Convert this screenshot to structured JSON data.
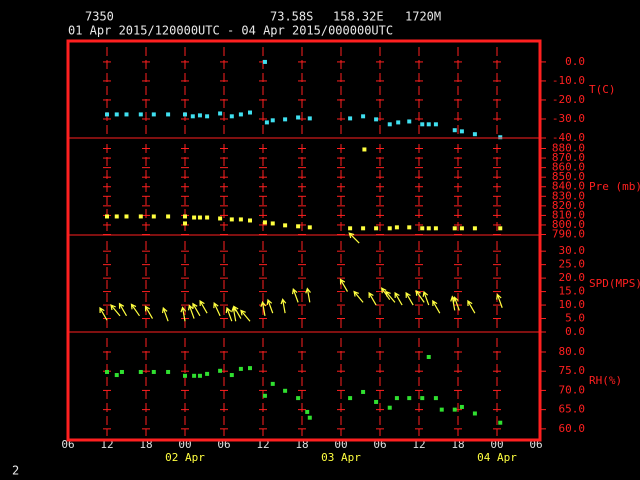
{
  "header": {
    "station": "7350",
    "latitude": "73.58S",
    "longitude": "158.32E",
    "elevation": "1720M",
    "period": "01 Apr 2015/120000UTC - 04 Apr 2015/000000UTC"
  },
  "x_axis": {
    "xlim": [
      0,
      72
    ],
    "xticks": [
      {
        "value": 0,
        "label": "06"
      },
      {
        "value": 6,
        "label": "12"
      },
      {
        "value": 12,
        "label": "18"
      },
      {
        "value": 18,
        "label": "00"
      },
      {
        "value": 24,
        "label": "06"
      },
      {
        "value": 30,
        "label": "12"
      },
      {
        "value": 36,
        "label": "18"
      },
      {
        "value": 42,
        "label": "00"
      },
      {
        "value": 48,
        "label": "06"
      },
      {
        "value": 54,
        "label": "12"
      },
      {
        "value": 60,
        "label": "18"
      },
      {
        "value": 66,
        "label": "00"
      },
      {
        "value": 72,
        "label": "06"
      }
    ],
    "date_labels": [
      {
        "value": 18,
        "label": "02 Apr"
      },
      {
        "value": 42,
        "label": "03 Apr"
      },
      {
        "value": 66,
        "label": "04 Apr"
      }
    ]
  },
  "chart_data": [
    {
      "type": "scatter",
      "ylabel": "T(C)",
      "color": "#40e0f0",
      "ylim": [
        -40,
        11
      ],
      "yticks": [
        {
          "value": 0,
          "label": "0.0"
        },
        {
          "value": -10,
          "label": "-10.0"
        },
        {
          "value": -20,
          "label": "-20.0"
        },
        {
          "value": -30,
          "label": "-30.0"
        },
        {
          "value": -40,
          "label": "-40.0"
        }
      ],
      "x": [
        6,
        7.5,
        9,
        11.2,
        13.2,
        15.4,
        18,
        19.2,
        20.3,
        21.4,
        23.4,
        25.2,
        26.6,
        28,
        30.3,
        30.6,
        31.5,
        33.4,
        35.4,
        37.2,
        43.4,
        45.4,
        47.4,
        49.5,
        50.8,
        52.5,
        54.5,
        55.5,
        56.6,
        59.5,
        60.6,
        62.6,
        66.5
      ],
      "values": [
        -27.6,
        -27.6,
        -27.6,
        -27.6,
        -27.6,
        -27.6,
        -27.6,
        -28.6,
        -28.1,
        -28.6,
        -27.1,
        -28.6,
        -27.6,
        -26.6,
        0,
        -31.8,
        -30.7,
        -30.2,
        -29.2,
        -29.7,
        -29.7,
        -28.6,
        -30.2,
        -32.8,
        -31.8,
        -31.3,
        -32.8,
        -32.8,
        -32.8,
        -35.9,
        -36.5,
        -38.0,
        -39.6
      ]
    },
    {
      "type": "scatter",
      "ylabel": "Pre (mb)",
      "color": "#ffff40",
      "ylim": [
        789.5,
        891
      ],
      "yticks": [
        {
          "value": 880,
          "label": "880.0"
        },
        {
          "value": 870,
          "label": "870.0"
        },
        {
          "value": 860,
          "label": "860.0"
        },
        {
          "value": 850,
          "label": "850.0"
        },
        {
          "value": 840,
          "label": "840.0"
        },
        {
          "value": 830,
          "label": "830.0"
        },
        {
          "value": 820,
          "label": "820.0"
        },
        {
          "value": 810,
          "label": "810.0"
        },
        {
          "value": 800,
          "label": "800.0"
        },
        {
          "value": 790,
          "label": "790.0"
        }
      ],
      "x": [
        6,
        7.5,
        9,
        11.2,
        13.2,
        15.4,
        18,
        18,
        19.4,
        20.3,
        21.4,
        23.4,
        25.2,
        26.6,
        28,
        30.3,
        31.5,
        33.4,
        35.4,
        37.2,
        43.4,
        45.4,
        45.6,
        47.4,
        49.5,
        50.6,
        52.5,
        54.5,
        55.5,
        56.6,
        59.5,
        60.6,
        62.6,
        66.5
      ],
      "values": [
        808.9,
        808.9,
        808.9,
        808.9,
        808.9,
        808.9,
        808.9,
        801.6,
        807.8,
        807.8,
        807.8,
        806.8,
        805.8,
        805.8,
        804.7,
        802.7,
        801.6,
        799.6,
        798.6,
        797.5,
        796.5,
        796.5,
        879,
        796.5,
        796.5,
        797.5,
        797.5,
        796.5,
        796.5,
        796.5,
        796.5,
        796.5,
        796.5,
        796.5
      ]
    },
    {
      "type": "vector",
      "ylabel": "SPD(MPS)",
      "color": "#ffff40",
      "ylim": [
        0,
        36
      ],
      "yticks": [
        {
          "value": 30,
          "label": "30.0"
        },
        {
          "value": 25,
          "label": "25.0"
        },
        {
          "value": 20,
          "label": "20.0"
        },
        {
          "value": 15,
          "label": "15.0"
        },
        {
          "value": 10,
          "label": "10.0"
        },
        {
          "value": 5,
          "label": "5.0"
        },
        {
          "value": 0,
          "label": "0.0"
        }
      ],
      "x": [
        6,
        8,
        9,
        11,
        13,
        15.4,
        18,
        19.4,
        20.3,
        21.4,
        23.4,
        25.2,
        25.8,
        26.6,
        28,
        30.3,
        31.5,
        33.4,
        35.4,
        37.2,
        43,
        44.8,
        45.4,
        47.4,
        49.5,
        50.3,
        51.4,
        53.1,
        54.8,
        55.5,
        57.2,
        59.5,
        60.2,
        62.6,
        66.8
      ],
      "values": [
        4.4,
        6,
        6,
        6,
        5,
        4,
        4,
        5,
        6,
        7,
        6,
        4,
        4,
        5,
        4,
        6,
        7,
        7,
        11,
        11,
        15,
        33,
        11,
        10,
        12,
        11,
        10,
        10,
        11,
        10,
        7,
        8,
        8,
        7,
        9
      ],
      "direction": [
        150,
        140,
        150,
        145,
        150,
        160,
        170,
        160,
        150,
        150,
        155,
        160,
        170,
        150,
        140,
        170,
        160,
        170,
        160,
        170,
        150,
        135,
        140,
        150,
        145,
        140,
        150,
        150,
        145,
        160,
        150,
        170,
        160,
        150,
        160
      ]
    },
    {
      "type": "scatter",
      "ylabel": "RH(%)",
      "color": "#30e030",
      "ylim": [
        57.1,
        85.2
      ],
      "yticks": [
        {
          "value": 80,
          "label": "80.0"
        },
        {
          "value": 75,
          "label": "75.0"
        },
        {
          "value": 70,
          "label": "70.0"
        },
        {
          "value": 65,
          "label": "65.0"
        },
        {
          "value": 60,
          "label": "60.0"
        }
      ],
      "x": [
        6,
        7.5,
        8.3,
        11.2,
        13.2,
        15.4,
        18,
        19.4,
        20.3,
        21.4,
        23.4,
        25.2,
        26.6,
        28,
        30.3,
        31.5,
        33.4,
        35.4,
        36.8,
        37.2,
        43.4,
        45.4,
        47.4,
        49.5,
        50.6,
        52.5,
        54.5,
        55.5,
        56.6,
        57.5,
        59.5,
        60.6,
        62.6,
        66.5
      ],
      "values": [
        74.8,
        74,
        74.8,
        74.8,
        74.8,
        74.8,
        73.8,
        73.8,
        73.8,
        74.3,
        75.1,
        74,
        75.6,
        75.8,
        68.6,
        71.7,
        69.9,
        68,
        64.4,
        62.9,
        68,
        69.6,
        67,
        65.5,
        68,
        68,
        68,
        78.7,
        68,
        65,
        65,
        65.7,
        64,
        61.6
      ]
    }
  ],
  "footer": "2"
}
